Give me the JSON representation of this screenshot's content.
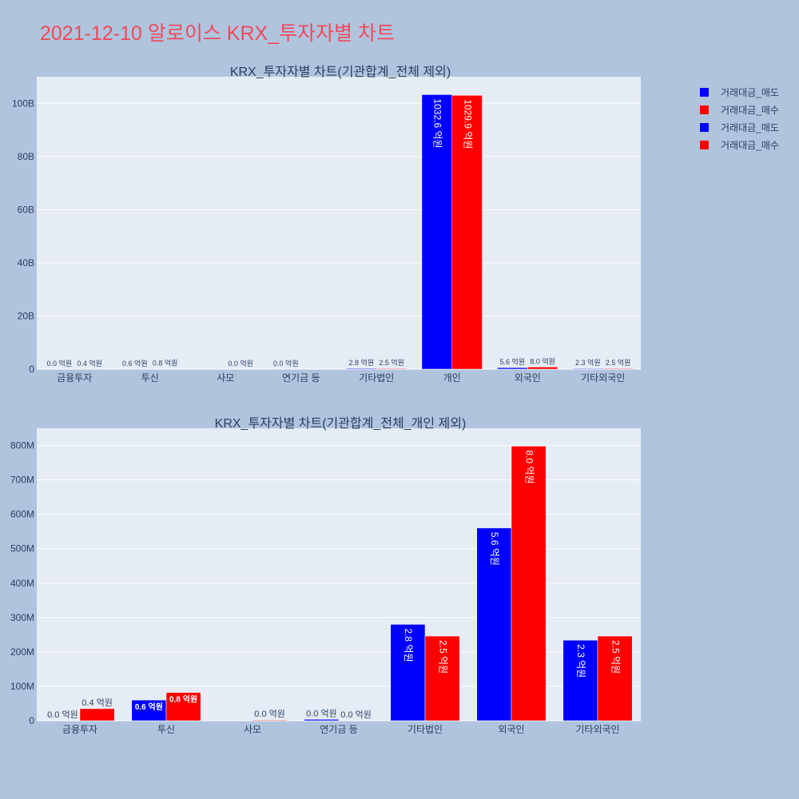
{
  "title": "2021-12-10 알로이스 KRX_투자자별 차트",
  "colors": {
    "sell": "#0000ff",
    "buy": "#ff0000",
    "plot_bg": "#e5ecf6",
    "page_bg": "#b0c4de",
    "title": "#ef4a5a",
    "text": "#2a3f5f"
  },
  "legend": [
    {
      "label": "거래대금_매도",
      "color": "#0000ff"
    },
    {
      "label": "거래대금_매수",
      "color": "#ff0000"
    },
    {
      "label": "거래대금_매도",
      "color": "#0000ff"
    },
    {
      "label": "거래대금_매수",
      "color": "#ff0000"
    }
  ],
  "chart_data": [
    {
      "type": "bar",
      "title": "KRX_투자자별 차트(기관합계_전체 제외)",
      "categories": [
        "금융투자",
        "투신",
        "사모",
        "연기금 등",
        "기타법인",
        "개인",
        "외국인",
        "기타외국인"
      ],
      "series": [
        {
          "name": "거래대금_매도",
          "color": "#0000ff",
          "values": [
            0,
            60000000,
            0,
            4000000,
            280000000,
            103260000000,
            560000000,
            234000000
          ],
          "labels": [
            "0.0 억원",
            "0.6 억원",
            "",
            "0.0 억원",
            "2.8 억원",
            "1032.6 억원",
            "5.6 억원",
            "2.3 억원"
          ]
        },
        {
          "name": "거래대금_매수",
          "color": "#ff0000",
          "values": [
            35000000,
            82000000,
            2000000,
            0,
            246000000,
            102990000000,
            798000000,
            246000000
          ],
          "labels": [
            "0.4 억원",
            "0.8 억원",
            "0.0 억원",
            "",
            "2.5 억원",
            "1029.9 억원",
            "8.0 억원",
            "2.5 억원"
          ]
        }
      ],
      "ylim": [
        0,
        110000000000
      ],
      "yticks": [
        0,
        20000000000,
        40000000000,
        60000000000,
        80000000000,
        100000000000
      ],
      "ytick_labels": [
        "0",
        "20B",
        "40B",
        "60B",
        "80B",
        "100B"
      ],
      "grid": true,
      "legend_position": "top-right"
    },
    {
      "type": "bar",
      "title": "KRX_투자자별 차트(기관합계_전체_개인 제외)",
      "categories": [
        "금융투자",
        "투신",
        "사모",
        "연기금 등",
        "기타법인",
        "외국인",
        "기타외국인"
      ],
      "series": [
        {
          "name": "거래대금_매도",
          "color": "#0000ff",
          "values": [
            0,
            60000000,
            0,
            4000000,
            280000000,
            560000000,
            234000000
          ],
          "labels": [
            "0.0 억원",
            "0.6 억원",
            "",
            "0.0 억원",
            "2.8 억원",
            "5.6 억원",
            "2.3 억원"
          ]
        },
        {
          "name": "거래대금_매수",
          "color": "#ff0000",
          "values": [
            35000000,
            82000000,
            2000000,
            0,
            246000000,
            798000000,
            246000000
          ],
          "labels": [
            "0.4 억원",
            "0.8 억원",
            "0.0 억원",
            "0.0 억원",
            "2.5 억원",
            "8.0 억원",
            "2.5 억원"
          ]
        }
      ],
      "ylim": [
        0,
        850000000
      ],
      "yticks": [
        0,
        100000000,
        200000000,
        300000000,
        400000000,
        500000000,
        600000000,
        700000000,
        800000000
      ],
      "ytick_labels": [
        "0",
        "100M",
        "200M",
        "300M",
        "400M",
        "500M",
        "600M",
        "700M",
        "800M"
      ],
      "grid": true,
      "legend_position": "top-right"
    }
  ]
}
